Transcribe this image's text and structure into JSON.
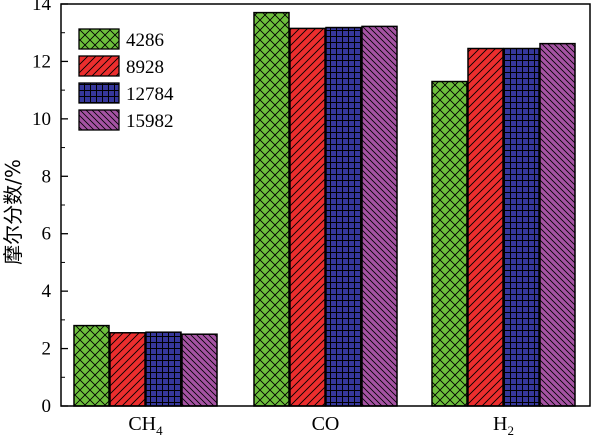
{
  "chart_data": {
    "type": "bar",
    "title": "",
    "xlabel": "",
    "ylabel": "摩尔分数/%",
    "ylim": [
      0,
      14
    ],
    "yticks": [
      0,
      2,
      4,
      6,
      8,
      10,
      12,
      14
    ],
    "grid": false,
    "legend_position": "top-left",
    "categories": [
      {
        "base": "CH",
        "sub": "4"
      },
      {
        "base": "CO",
        "sub": ""
      },
      {
        "base": "H",
        "sub": "2"
      }
    ],
    "series": [
      {
        "name": "4286",
        "color": "#6dbf3c",
        "pattern": "crosshatch-diagonal",
        "values": [
          2.8,
          13.7,
          11.3
        ]
      },
      {
        "name": "8928",
        "color": "#ec2e2e",
        "pattern": "hatch-forward",
        "values": [
          2.55,
          13.15,
          12.45
        ]
      },
      {
        "name": "12784",
        "color": "#36379b",
        "pattern": "grid",
        "values": [
          2.57,
          13.18,
          12.45
        ]
      },
      {
        "name": "15982",
        "color": "#a553a3",
        "pattern": "hatch-backward",
        "values": [
          2.5,
          13.22,
          12.62
        ]
      }
    ]
  }
}
